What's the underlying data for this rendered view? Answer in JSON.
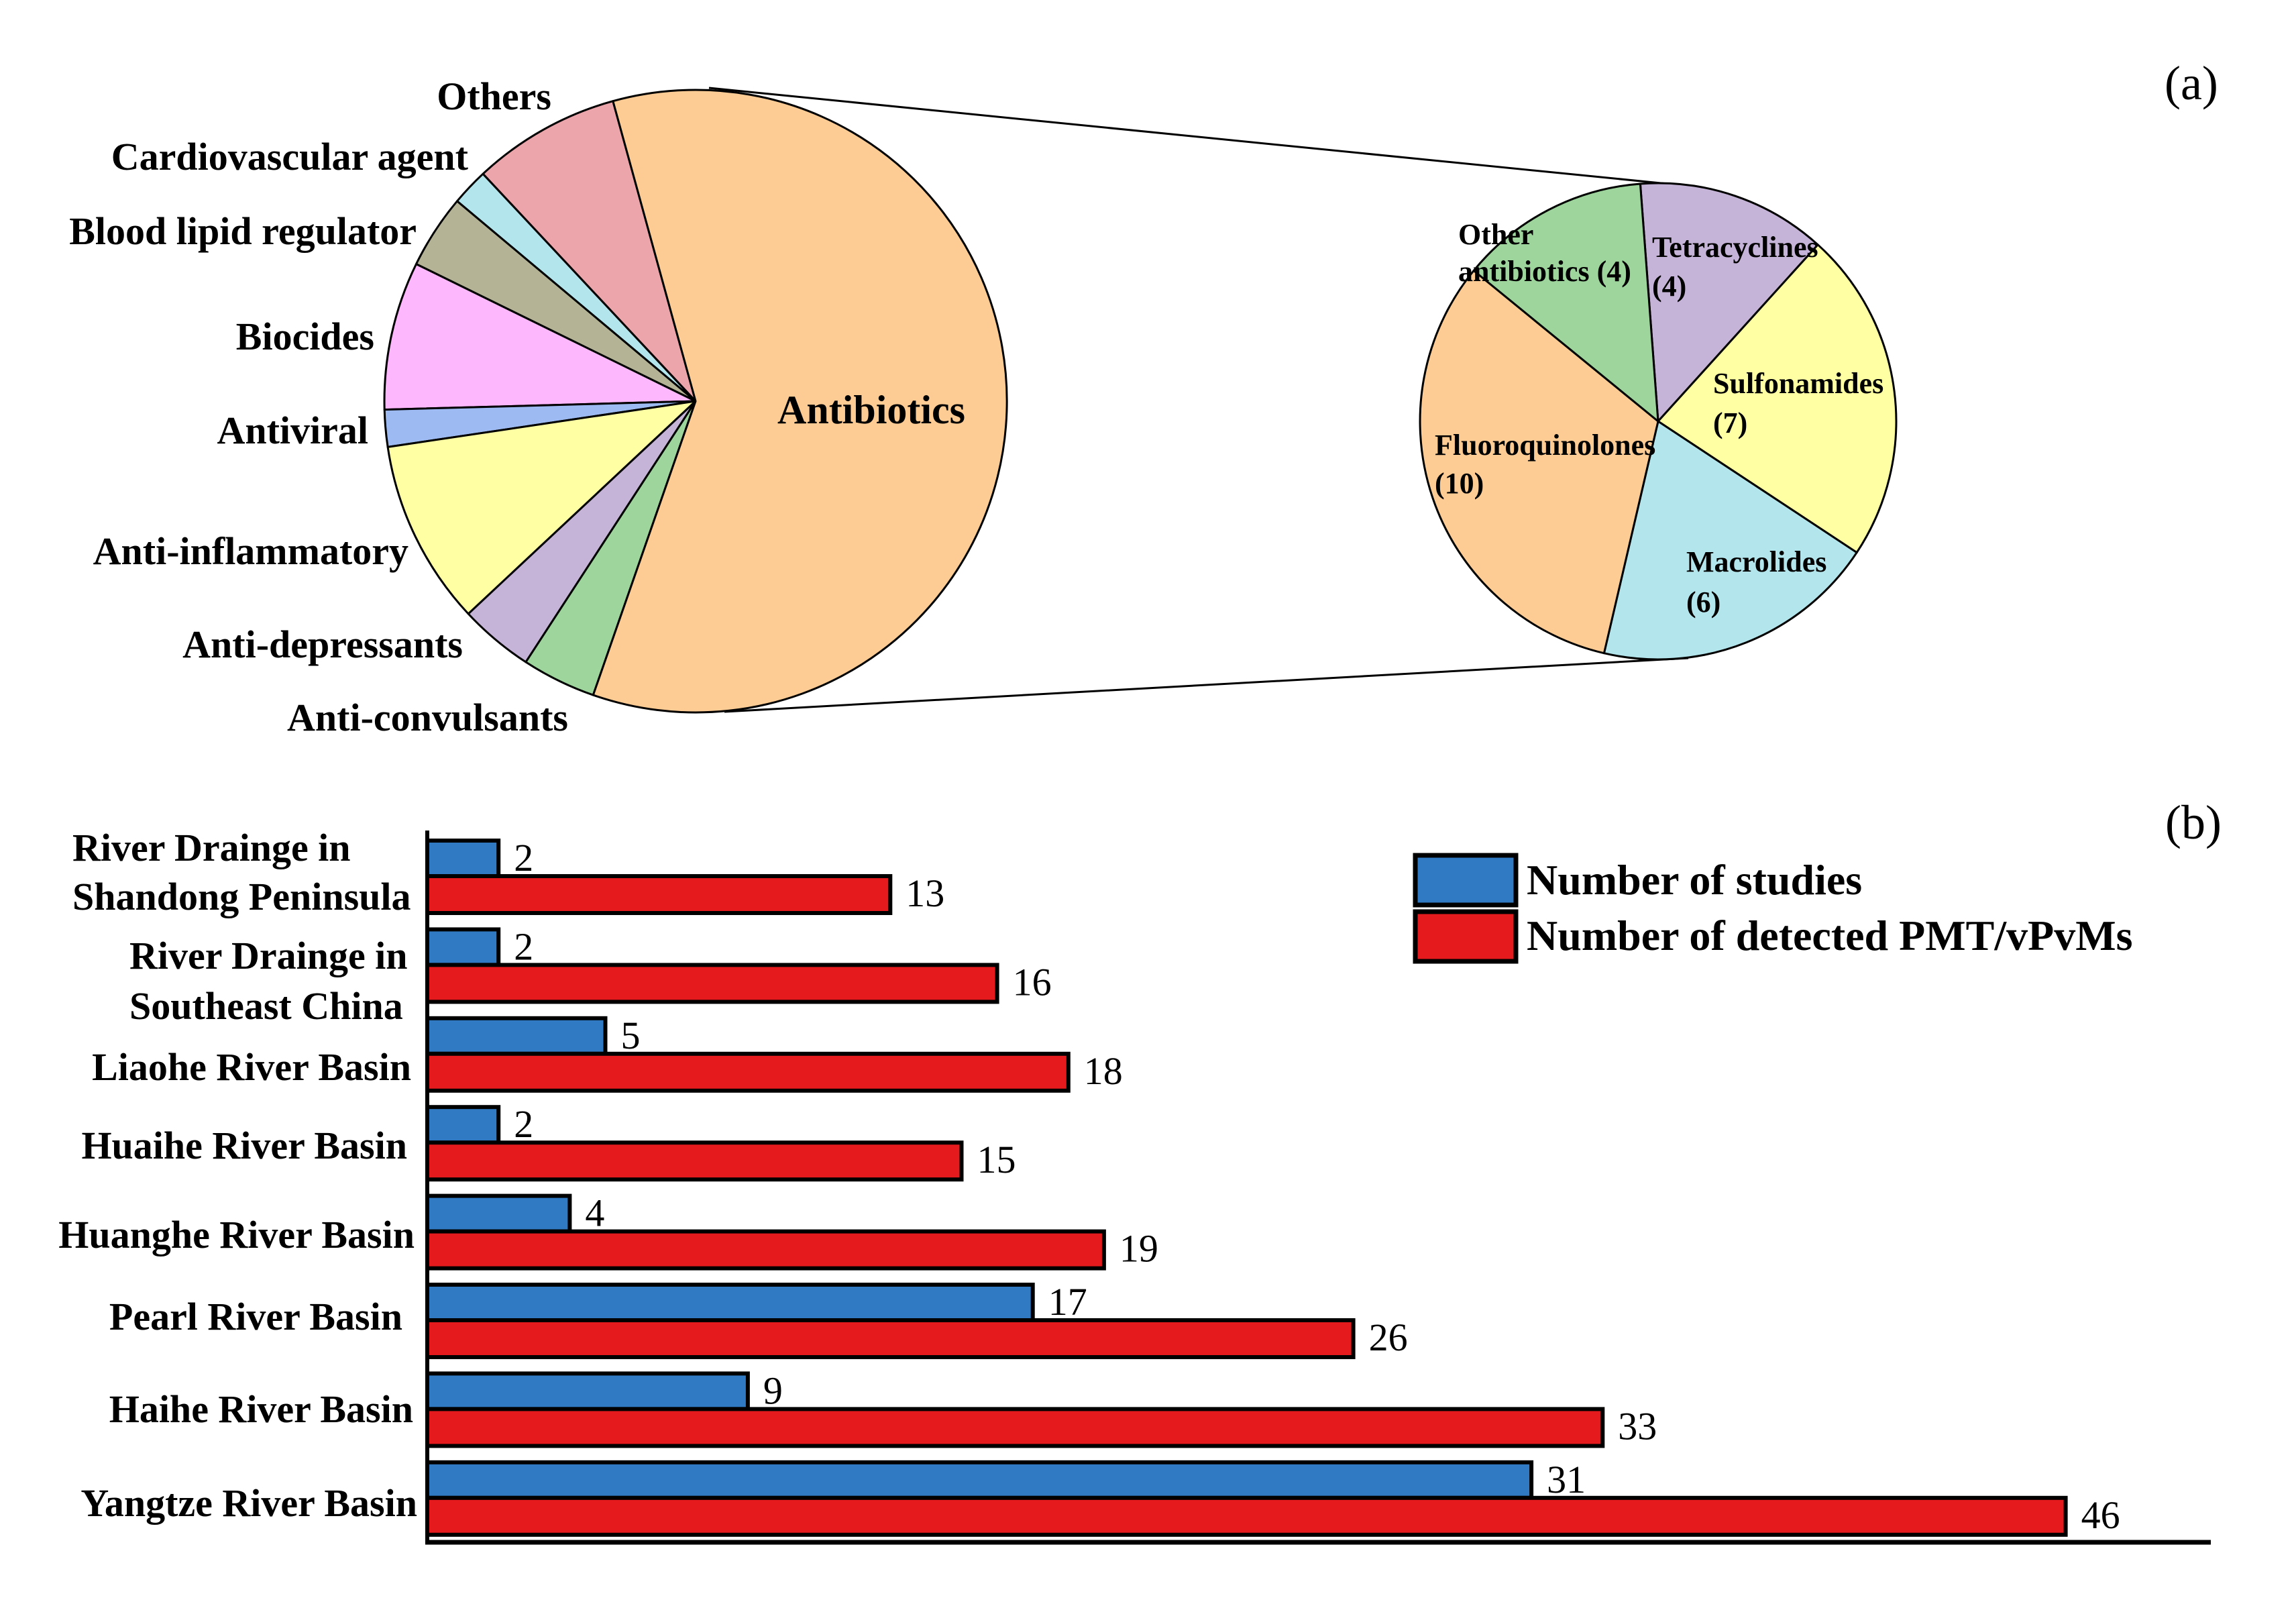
{
  "panel_labels": {
    "a": "(a)",
    "b": "(b)"
  },
  "chart_data": [
    {
      "type": "pie",
      "title": "",
      "slices": [
        {
          "label": "Others",
          "value": 4,
          "color": "#EDA5AC"
        },
        {
          "label": "Cardiovascular agent",
          "value": 1,
          "color": "#B3E5EC"
        },
        {
          "label": "Blood lipid regulator",
          "value": 2,
          "color": "#B5B395"
        },
        {
          "label": "Biocides",
          "value": 4,
          "color": "#FDB7FC"
        },
        {
          "label": "Antiviral",
          "value": 1,
          "color": "#9DBBF2"
        },
        {
          "label": "Anti-inflammatory",
          "value": 5,
          "color": "#FFFFA3"
        },
        {
          "label": "Anti-depressants",
          "value": 2,
          "color": "#C6B3D8"
        },
        {
          "label": "Anti-convulsants",
          "value": 2,
          "color": "#9DD59D"
        },
        {
          "label": "Antibiotics",
          "value": 31,
          "color": "#FDCB94"
        }
      ]
    },
    {
      "type": "pie",
      "title": "",
      "slices": [
        {
          "label_lines": [
            "Tetracyclines",
            "(4)"
          ],
          "value": 4,
          "color": "#C6B3D8"
        },
        {
          "label_lines": [
            "Sulfonamides",
            "(7)"
          ],
          "value": 7,
          "color": "#FFFFA3"
        },
        {
          "label_lines": [
            "Macrolides",
            "(6)"
          ],
          "value": 6,
          "color": "#B3E5EC"
        },
        {
          "label_lines": [
            "Fluoroquinolones",
            "(10)"
          ],
          "value": 10,
          "color": "#FDCB94"
        },
        {
          "label_lines": [
            "Other",
            "antibiotics (4)"
          ],
          "value": 4,
          "color": "#9DD59D"
        }
      ]
    },
    {
      "type": "bar",
      "orientation": "horizontal",
      "title": "",
      "xlabel": "",
      "ylabel": "",
      "xlim": [
        0,
        50
      ],
      "grid": false,
      "legend_position": "top-right",
      "categories": [
        [
          "River Drainge in",
          "Shandong Peninsula"
        ],
        [
          "River Drainge in",
          "Southeast China"
        ],
        [
          "Liaohe River Basin"
        ],
        [
          "Huaihe River Basin"
        ],
        [
          "Huanghe River Basin"
        ],
        [
          "Pearl River Basin"
        ],
        [
          "Haihe River Basin"
        ],
        [
          "Yangtze River Basin"
        ]
      ],
      "series": [
        {
          "name": "Number of studies",
          "color": "#2F7AC2",
          "values": [
            2,
            2,
            5,
            2,
            4,
            17,
            9,
            31
          ]
        },
        {
          "name": "Number of detected PMT/vPvMs",
          "color": "#E41A1C",
          "values": [
            13,
            16,
            18,
            15,
            19,
            26,
            33,
            46
          ]
        }
      ]
    }
  ]
}
